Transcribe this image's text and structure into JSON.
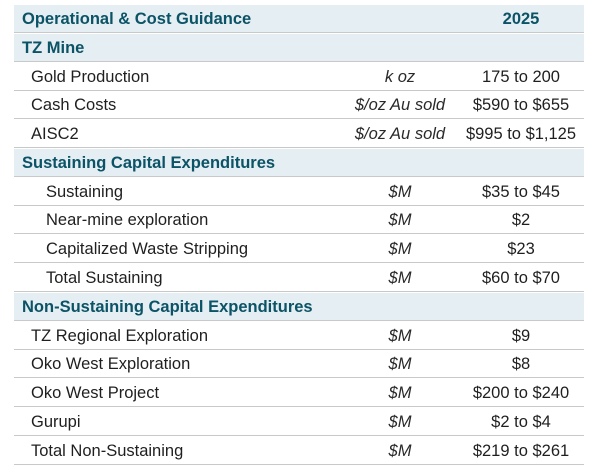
{
  "table": {
    "title": "Operational & Cost Guidance",
    "year": "2025",
    "sections": [
      {
        "name": "TZ Mine",
        "rows": [
          {
            "label": "Gold Production",
            "unit": "k oz",
            "value": "175 to 200"
          },
          {
            "label": "Cash Costs",
            "unit": "$/oz Au sold",
            "value": "$590 to $655"
          },
          {
            "label": "AISC2",
            "unit": "$/oz Au sold",
            "value": "$995 to $1,125"
          }
        ]
      },
      {
        "name": "Sustaining Capital Expenditures",
        "rows": [
          {
            "label": "Sustaining",
            "unit": "$M",
            "value": "$35 to $45"
          },
          {
            "label": "Near-mine exploration",
            "unit": "$M",
            "value": "$2"
          },
          {
            "label": "Capitalized Waste Stripping",
            "unit": "$M",
            "value": "$23"
          },
          {
            "label": "Total Sustaining",
            "unit": "$M",
            "value": "$60 to $70"
          }
        ]
      },
      {
        "name": "Non-Sustaining Capital Expenditures",
        "rows": [
          {
            "label": "TZ Regional Exploration",
            "unit": "$M",
            "value": "$9"
          },
          {
            "label": "Oko West Exploration",
            "unit": "$M",
            "value": "$8"
          },
          {
            "label": "Oko West Project",
            "unit": "$M",
            "value": "$200 to $240"
          },
          {
            "label": "Gurupi",
            "unit": "$M",
            "value": "$2 to $4"
          },
          {
            "label": "Total Non-Sustaining",
            "unit": "$M",
            "value": "$219 to $261"
          }
        ]
      }
    ]
  },
  "colors": {
    "header_background": "#e5eef2",
    "header_text": "#0b5366",
    "row_divider": "#c9c9c9"
  }
}
